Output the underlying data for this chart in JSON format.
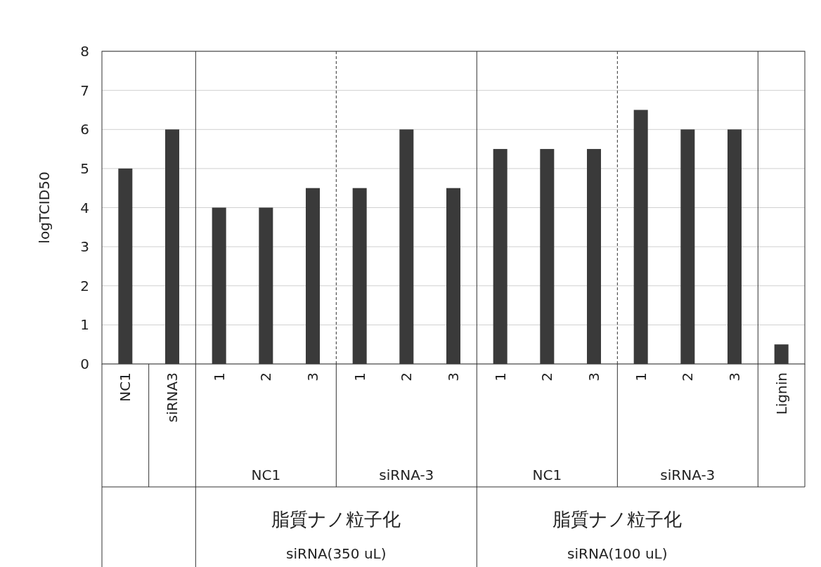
{
  "chart_data": {
    "type": "bar",
    "ylabel": "logTCID50",
    "categories": [
      "NC1",
      "siRNA3",
      "1",
      "2",
      "3",
      "1",
      "2",
      "3",
      "1",
      "2",
      "3",
      "1",
      "2",
      "3",
      "Lignin"
    ],
    "values": [
      5,
      6,
      4,
      4,
      4.5,
      4.5,
      6,
      4.5,
      5.5,
      5.5,
      5.5,
      6.5,
      6,
      6,
      0.5
    ],
    "color": "#3a3a3a",
    "ylim": [
      0,
      8
    ],
    "yticks": [
      0,
      1,
      2,
      3,
      4,
      5,
      6,
      7,
      8
    ],
    "grid": "y",
    "annotations": [
      "NC1",
      "siRNA-3",
      "NC1",
      "siRNA-3",
      "脂質ナノ粒子化",
      "siRNA(350 uL)",
      "脂質ナノ粒子化",
      "siRNA(100 uL)"
    ]
  }
}
